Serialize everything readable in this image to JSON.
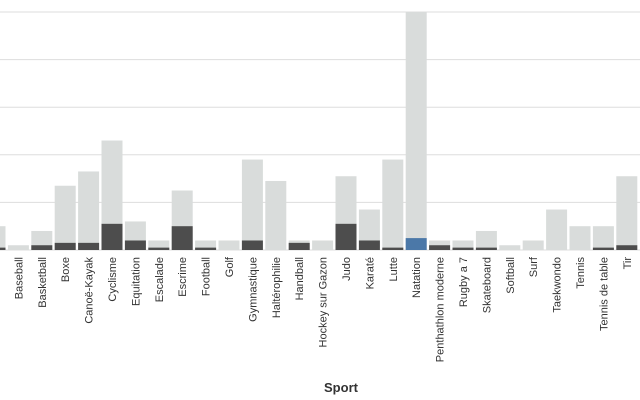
{
  "colors": {
    "background": "#ffffff",
    "gridline": "#dddddd",
    "total_bar": "#d9dcdb",
    "subset_bar": "#4d4d4d",
    "highlight_bar": "#4b78a8"
  },
  "chart_data": {
    "type": "bar",
    "barmode": "overlay",
    "xlabel": "Sport",
    "ylabel": "",
    "grid": true,
    "ylim": [
      0,
      100
    ],
    "highlight_category": "Natation",
    "categories": [
      "",
      "Baseball",
      "Basketball",
      "Boxe",
      "Canoë-Kayak",
      "Cyclisme",
      "Equitation",
      "Escalade",
      "Escrime",
      "Football",
      "Golf",
      "Gymnastique",
      "Haltérophilie",
      "Handball",
      "Hockey sur Gazon",
      "Judo",
      "Karaté",
      "Lutte",
      "Natation",
      "Penthathlon moderne",
      "Rugby a 7",
      "Skateboard",
      "Softball",
      "Surf",
      "Taekwondo",
      "Tennis",
      "Tennis de table",
      "Tir"
    ],
    "series": [
      {
        "values": [
          10,
          2,
          8,
          27,
          33,
          46,
          12,
          4,
          25,
          4,
          4,
          38,
          29,
          4,
          4,
          31,
          17,
          38,
          100,
          4,
          4,
          8,
          2,
          4,
          17,
          10,
          10,
          31
        ]
      },
      {
        "values": [
          1,
          0,
          2,
          3,
          3,
          11,
          4,
          1,
          10,
          1,
          0,
          4,
          0,
          3,
          0,
          11,
          4,
          1,
          5,
          2,
          1,
          1,
          0,
          0,
          0,
          0,
          1,
          2
        ]
      }
    ]
  }
}
